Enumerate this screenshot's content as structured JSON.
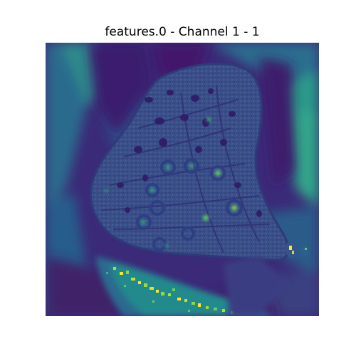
{
  "title": "features.0 - Channel 1 - 1",
  "colormap": "viridis",
  "axes_visible": false,
  "colors": {
    "background": "#ffffff",
    "viridis_dark": "#440154",
    "viridis_indigo": "#3b2a78",
    "viridis_blue": "#34558c",
    "viridis_teal": "#26828e",
    "viridis_green": "#35b779",
    "viridis_yellow": "#fde725"
  }
}
